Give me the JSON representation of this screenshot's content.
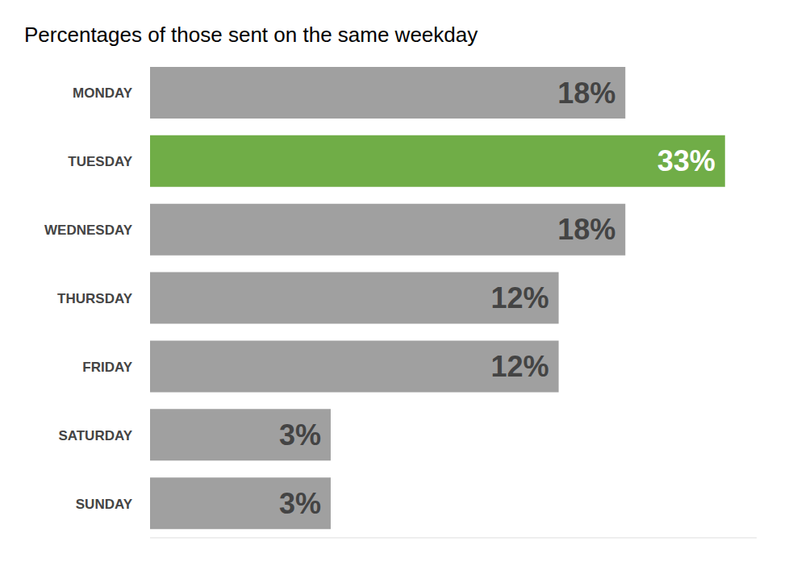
{
  "chart_data": {
    "type": "bar",
    "title": "Percentages of those sent on the same weekday",
    "orientation": "horizontal",
    "categories": [
      "MONDAY",
      "TUESDAY",
      "WEDNESDAY",
      "THURSDAY",
      "FRIDAY",
      "SATURDAY",
      "SUNDAY"
    ],
    "values": [
      18,
      33,
      18,
      12,
      12,
      3,
      3
    ],
    "value_labels": [
      "18%",
      "33%",
      "18%",
      "12%",
      "12%",
      "3%",
      "3%"
    ],
    "colors": [
      "#a0a0a0",
      "#70ad47",
      "#a0a0a0",
      "#a0a0a0",
      "#a0a0a0",
      "#a0a0a0",
      "#a0a0a0"
    ],
    "data_labels": true,
    "log": "x",
    "xlim": [
      1,
      40
    ],
    "tick_labels": "y",
    "grid": false
  }
}
